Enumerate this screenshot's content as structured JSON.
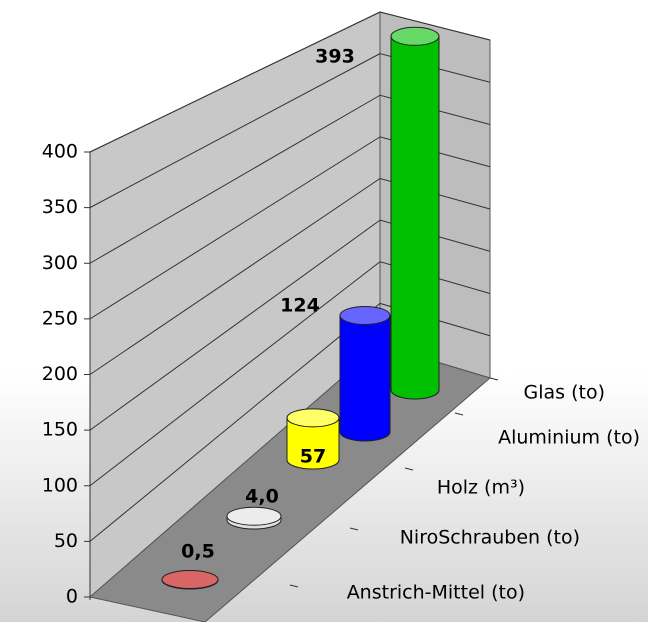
{
  "chart_data": {
    "type": "bar3d",
    "categories": [
      "Anstrich-Mittel (to)",
      "NiroSchrauben (to)",
      "Holz (m³)",
      "Aluminium (to)",
      "Glas (to)"
    ],
    "values": [
      0.5,
      4.0,
      57,
      124,
      393
    ],
    "value_labels": [
      "0,5",
      "4,0",
      "57",
      "124",
      "393"
    ],
    "colors": [
      "#c00000",
      "#e0e0e0",
      "#ffff00",
      "#0000ff",
      "#00c000"
    ],
    "ylim": [
      0,
      400
    ],
    "yticks": [
      0,
      50,
      100,
      150,
      200,
      250,
      300,
      350,
      400
    ],
    "grid": true
  }
}
